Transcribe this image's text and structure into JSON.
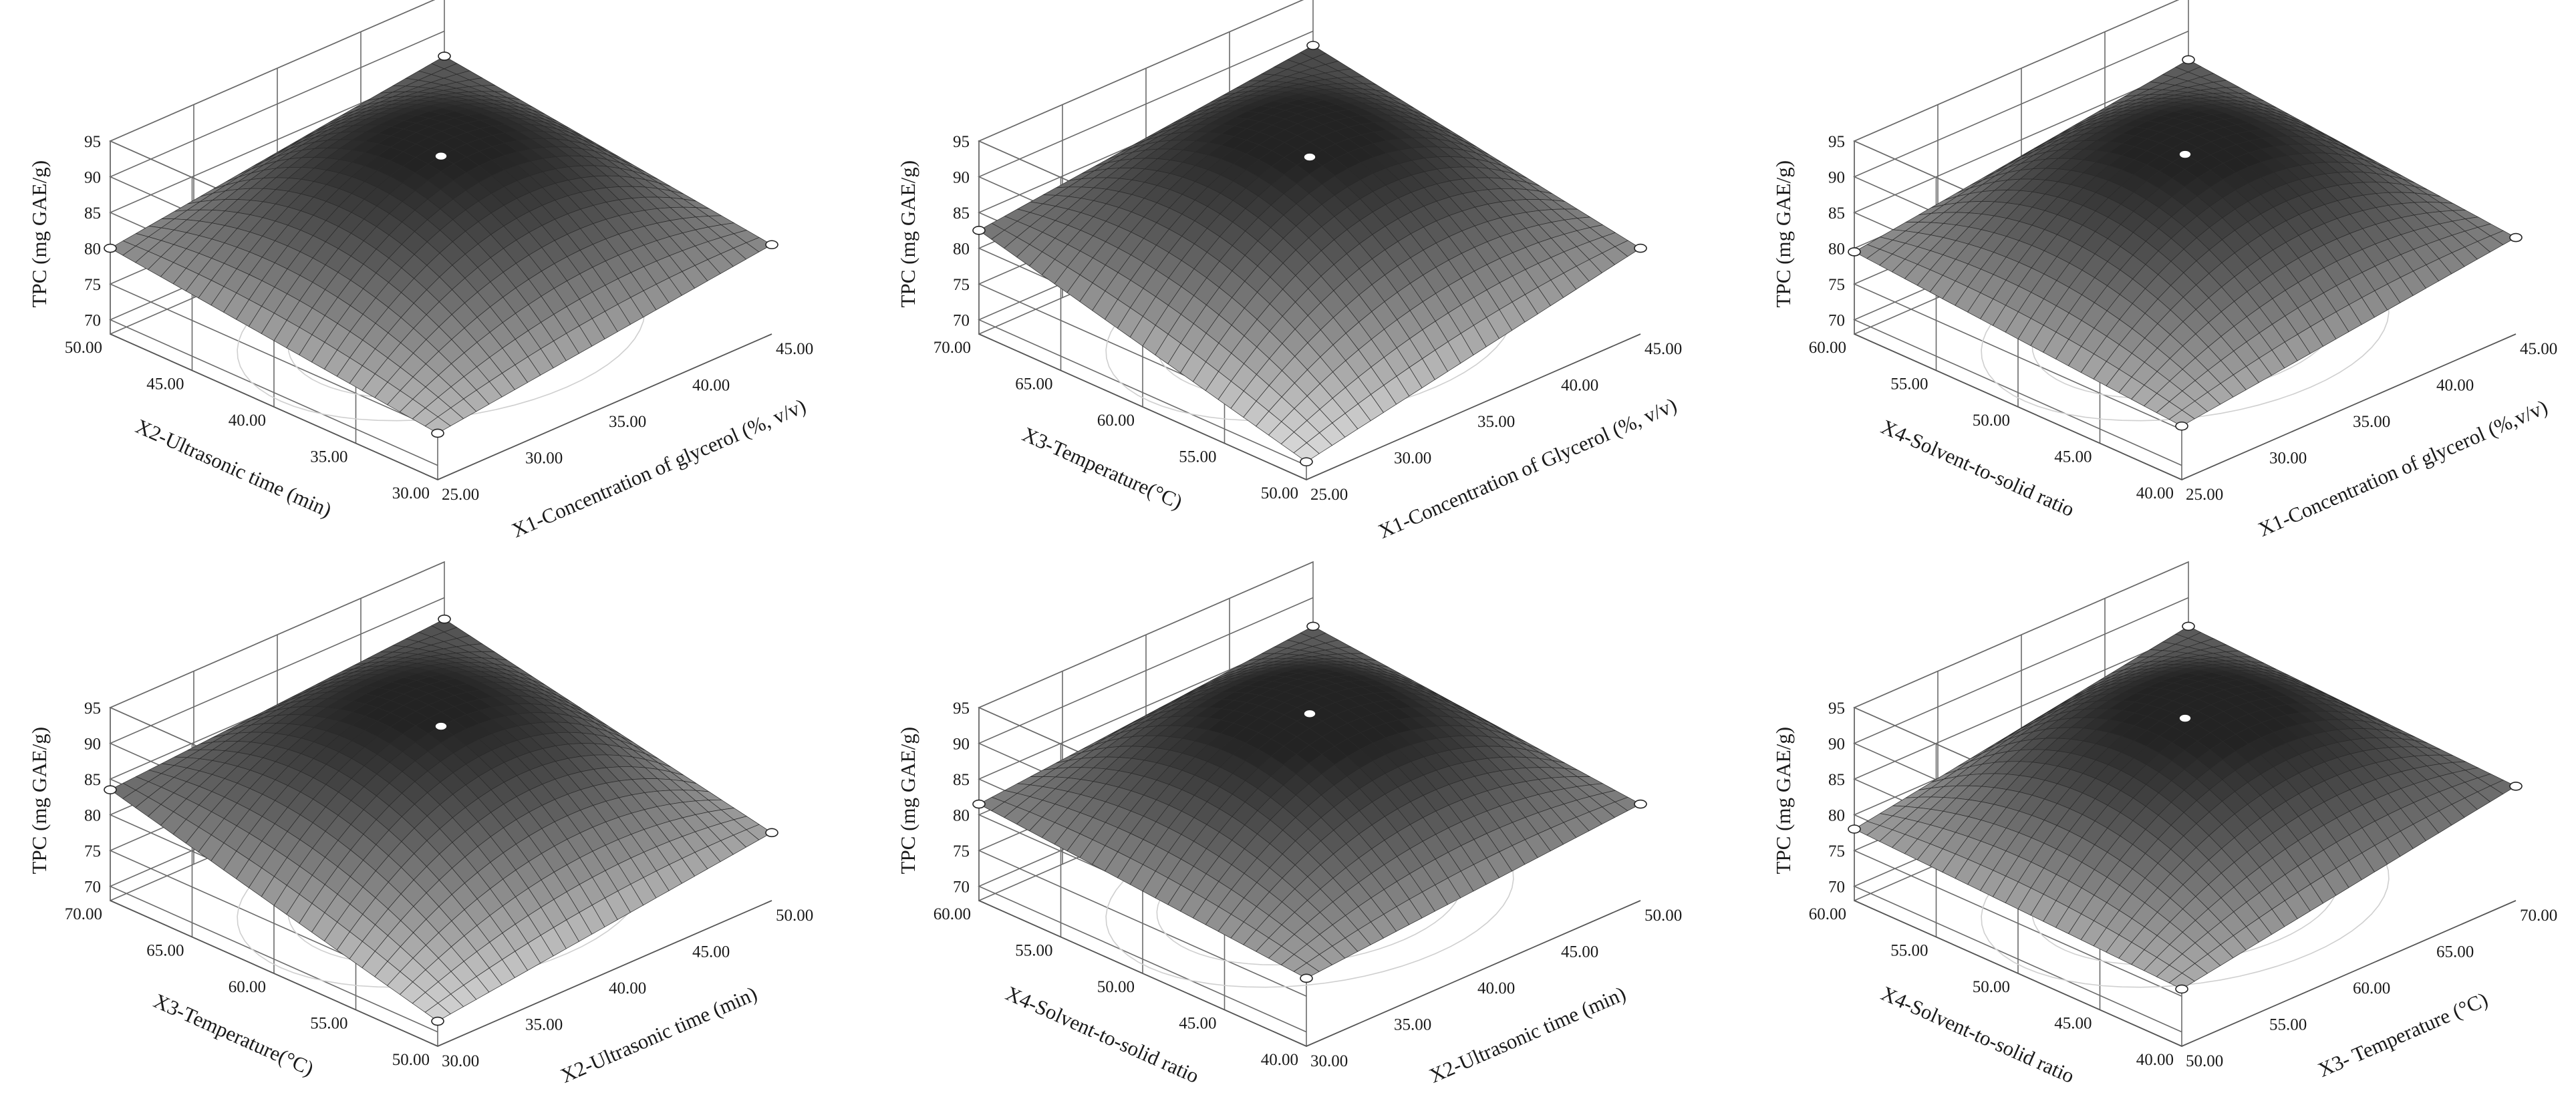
{
  "figure": {
    "panels": [
      {
        "id": "a",
        "zlabel": "TPC (mg GAE/g)",
        "xlabel": "X1-Concentration of glycerol (%, v/v)",
        "ylabel": "X2-Ultrasonic time (min)",
        "x_ticks": [
          "25.00",
          "30.00",
          "35.00",
          "40.00",
          "45.00"
        ],
        "y_ticks": [
          "30.00",
          "35.00",
          "40.00",
          "45.00",
          "50.00"
        ],
        "z_ticks": [
          "70",
          "75",
          "80",
          "85",
          "90",
          "95"
        ]
      },
      {
        "id": "b",
        "zlabel": "TPC (mg GAE/g)",
        "xlabel": "X1-Concentration of Glycerol (%, v/v)",
        "ylabel": "X3-Temperature(°C)",
        "x_ticks": [
          "25.00",
          "30.00",
          "35.00",
          "40.00",
          "45.00"
        ],
        "y_ticks": [
          "50.00",
          "55.00",
          "60.00",
          "65.00",
          "70.00"
        ],
        "z_ticks": [
          "70",
          "75",
          "80",
          "85",
          "90",
          "95"
        ]
      },
      {
        "id": "c",
        "zlabel": "TPC (mg GAE/g)",
        "xlabel": "X1-Concentration of glycerol (%,v/v)",
        "ylabel": "X4-Solvent-to-solid ratio",
        "x_ticks": [
          "25.00",
          "30.00",
          "35.00",
          "40.00",
          "45.00"
        ],
        "y_ticks": [
          "40.00",
          "45.00",
          "50.00",
          "55.00",
          "60.00"
        ],
        "z_ticks": [
          "70",
          "75",
          "80",
          "85",
          "90",
          "95"
        ]
      },
      {
        "id": "d",
        "zlabel": "TPC (mg GAE/g)",
        "xlabel": "X2-Ultrasonic time (min)",
        "ylabel": "X3-Temperature(°C)",
        "x_ticks": [
          "30.00",
          "35.00",
          "40.00",
          "45.00",
          "50.00"
        ],
        "y_ticks": [
          "50.00",
          "55.00",
          "60.00",
          "65.00",
          "70.00"
        ],
        "z_ticks": [
          "70",
          "75",
          "80",
          "85",
          "90",
          "95"
        ]
      },
      {
        "id": "e",
        "zlabel": "TPC (mg GAE/g)",
        "xlabel": "X2-Ultrasonic time (min)",
        "ylabel": "X4-Solvent-to-solid ratio",
        "x_ticks": [
          "30.00",
          "35.00",
          "40.00",
          "45.00",
          "50.00"
        ],
        "y_ticks": [
          "40.00",
          "45.00",
          "50.00",
          "55.00",
          "60.00"
        ],
        "z_ticks": [
          "70",
          "75",
          "80",
          "85",
          "90",
          "95"
        ]
      },
      {
        "id": "f",
        "zlabel": "TPC (mg GAE/g)",
        "xlabel": "X3- Temperature (°C)",
        "ylabel": "X4-Solvent-to-solid ratio",
        "x_ticks": [
          "50.00",
          "55.00",
          "60.00",
          "65.00",
          "70.00"
        ],
        "y_ticks": [
          "40.00",
          "45.00",
          "50.00",
          "55.00",
          "60.00"
        ],
        "z_ticks": [
          "70",
          "75",
          "80",
          "85",
          "90",
          "95"
        ]
      }
    ]
  },
  "chart_data": [
    {
      "type": "surface",
      "xlabel": "X1-Concentration of glycerol (%, v/v)",
      "ylabel": "X2-Ultrasonic time (min)",
      "zlabel": "TPC (mg GAE/g)",
      "xlim": [
        25,
        45
      ],
      "ylim": [
        30,
        50
      ],
      "zlim": [
        70,
        95
      ],
      "center": [
        35,
        40
      ],
      "z_max": 92.4,
      "corners": {
        "x_lo_y_lo": 74.5,
        "x_hi_y_lo": 80.5,
        "x_lo_y_hi": 80.0,
        "x_hi_y_hi": 86.5
      },
      "grid": true
    },
    {
      "type": "surface",
      "xlabel": "X1-Concentration of Glycerol (%, v/v)",
      "ylabel": "X3-Temperature(°C)",
      "zlabel": "TPC (mg GAE/g)",
      "xlim": [
        25,
        45
      ],
      "ylim": [
        50,
        70
      ],
      "zlim": [
        70,
        95
      ],
      "center": [
        35,
        60
      ],
      "z_max": 92.4,
      "corners": {
        "x_lo_y_lo": 70.5,
        "x_hi_y_lo": 80.0,
        "x_lo_y_hi": 82.5,
        "x_hi_y_hi": 88.0
      },
      "grid": true
    },
    {
      "type": "surface",
      "xlabel": "X1-Concentration of glycerol (%,v/v)",
      "ylabel": "X4-Solvent-to-solid ratio",
      "zlabel": "TPC (mg GAE/g)",
      "xlim": [
        25,
        45
      ],
      "ylim": [
        40,
        60
      ],
      "zlim": [
        70,
        95
      ],
      "center": [
        35,
        50
      ],
      "z_max": 92.4,
      "corners": {
        "x_lo_y_lo": 75.5,
        "x_hi_y_lo": 81.5,
        "x_lo_y_hi": 79.5,
        "x_hi_y_hi": 86.0
      },
      "grid": true
    },
    {
      "type": "surface",
      "xlabel": "X2-Ultrasonic time (min)",
      "ylabel": "X3-Temperature(°C)",
      "zlabel": "TPC (mg GAE/g)",
      "xlim": [
        30,
        50
      ],
      "ylim": [
        50,
        70
      ],
      "zlim": [
        70,
        95
      ],
      "center": [
        40,
        60
      ],
      "z_max": 92.4,
      "corners": {
        "x_lo_y_lo": 71.5,
        "x_hi_y_lo": 77.5,
        "x_lo_y_hi": 83.5,
        "x_hi_y_hi": 87.0
      },
      "grid": true
    },
    {
      "type": "surface",
      "xlabel": "X2-Ultrasonic time (min)",
      "ylabel": "X4-Solvent-to-solid ratio",
      "zlabel": "TPC (mg GAE/g)",
      "xlim": [
        30,
        50
      ],
      "ylim": [
        40,
        60
      ],
      "zlim": [
        70,
        95
      ],
      "center": [
        40,
        50
      ],
      "z_max": 92.4,
      "corners": {
        "x_lo_y_lo": 77.5,
        "x_hi_y_lo": 81.5,
        "x_lo_y_hi": 81.5,
        "x_hi_y_hi": 86.0
      },
      "grid": true
    },
    {
      "type": "surface",
      "xlabel": "X3- Temperature (°C)",
      "ylabel": "X4-Solvent-to-solid ratio",
      "zlabel": "TPC (mg GAE/g)",
      "xlim": [
        50,
        70
      ],
      "ylim": [
        40,
        60
      ],
      "zlim": [
        70,
        95
      ],
      "center": [
        60,
        50
      ],
      "z_max": 92.4,
      "corners": {
        "x_lo_y_lo": 76.0,
        "x_hi_y_lo": 84.0,
        "x_lo_y_hi": 78.0,
        "x_hi_y_hi": 86.0
      },
      "grid": true
    }
  ]
}
